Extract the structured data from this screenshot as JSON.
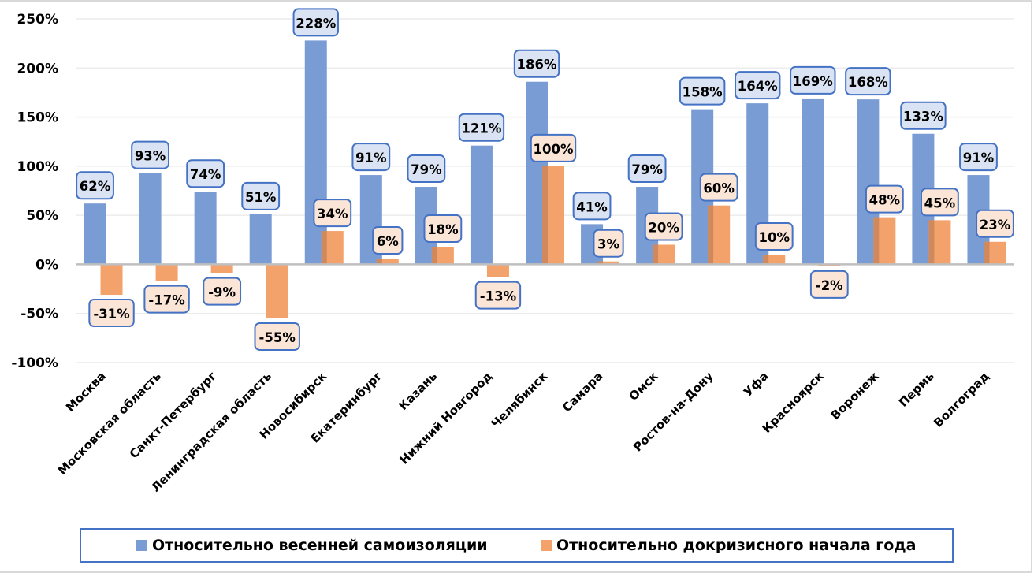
{
  "chart_data": {
    "type": "bar",
    "title": "",
    "xlabel": "",
    "ylabel": "",
    "ylim": [
      -1.0,
      2.5
    ],
    "y_tick_values": [
      -1.0,
      -0.5,
      0,
      0.5,
      1.0,
      1.5,
      2.0,
      2.5
    ],
    "y_tick_labels": [
      "-100%",
      "-50%",
      "0%",
      "50%",
      "100%",
      "150%",
      "200%",
      "250%"
    ],
    "grid": true,
    "legend_position": "bottom",
    "categories": [
      "Москва",
      "Московская  область",
      "Санкт-Петербург",
      "Ленинградская  область",
      "Новосибирск",
      "Екатеринбург",
      "Казань",
      "Нижний  Новгород",
      "Челябинск",
      "Самара",
      "Омск",
      "Ростов-на-Дону",
      "Уфа",
      "Красноярск",
      "Воронеж",
      "Пермь",
      "Волгоград"
    ],
    "series": [
      {
        "name": "Относительно весенней самоизоляции",
        "color": "#7a9cd5",
        "label_fill": "#dae3f3",
        "values": [
          0.62,
          0.93,
          0.74,
          0.51,
          2.28,
          0.91,
          0.79,
          1.21,
          1.86,
          0.41,
          0.79,
          1.58,
          1.64,
          1.69,
          1.68,
          1.33,
          0.91
        ],
        "labels": [
          "62%",
          "93%",
          "74%",
          "51%",
          "228%",
          "91%",
          "79%",
          "121%",
          "186%",
          "41%",
          "79%",
          "158%",
          "164%",
          "169%",
          "168%",
          "133%",
          "91%"
        ]
      },
      {
        "name": "Относительно докризисного начала года",
        "color": "#f4a26b",
        "label_fill": "#fbe5d6",
        "values": [
          -0.31,
          -0.17,
          -0.09,
          -0.55,
          0.34,
          0.06,
          0.18,
          -0.13,
          1.0,
          0.03,
          0.2,
          0.6,
          0.1,
          -0.02,
          0.48,
          0.45,
          0.23
        ],
        "labels": [
          "-31%",
          "-17%",
          "-9%",
          "-55%",
          "34%",
          "6%",
          "18%",
          "-13%",
          "100%",
          "3%",
          "20%",
          "60%",
          "10%",
          "-2%",
          "48%",
          "45%",
          "23%"
        ]
      }
    ],
    "label_border_color": "#4472c4"
  }
}
